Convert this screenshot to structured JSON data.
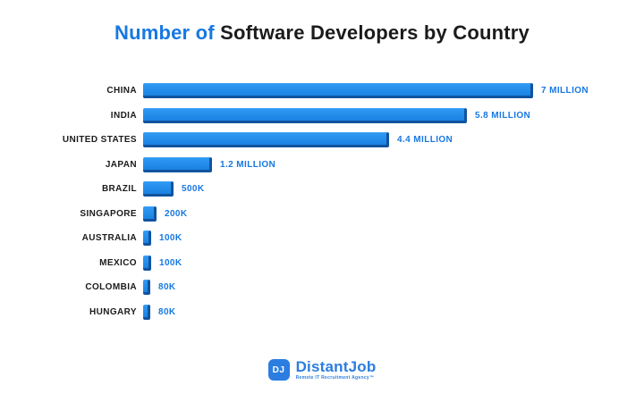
{
  "title": {
    "highlight": "Number of",
    "rest": " Software Developers by Country"
  },
  "chart_data": {
    "type": "bar",
    "orientation": "horizontal",
    "title": "Number of Software Developers by Country",
    "xlabel": "",
    "ylabel": "",
    "xlim": [
      0,
      7000000
    ],
    "grid": false,
    "legend": false,
    "categories": [
      "CHINA",
      "INDIA",
      "UNITED STATES",
      "JAPAN",
      "BRAZIL",
      "SINGAPORE",
      "AUSTRALIA",
      "MEXICO",
      "COLOMBIA",
      "HUNGARY"
    ],
    "values": [
      7000000,
      5800000,
      4400000,
      1200000,
      500000,
      200000,
      100000,
      100000,
      80000,
      80000
    ],
    "value_labels": [
      "7 MILLION",
      "5.8 MILLION",
      "4.4 MILLION",
      "1.2 MILLION",
      "500K",
      "200K",
      "100K",
      "100K",
      "80K",
      "80K"
    ]
  },
  "footer": {
    "logo_monogram": "DJ",
    "brand": "DistantJob",
    "tagline": "Remote IT Recruitment Agency™"
  },
  "colors": {
    "bar_fill": "#1E8CEC",
    "bar_border": "#11539F",
    "accent_blue": "#1778E2",
    "text_dark": "#1B1B1D",
    "background": "#FFFFFF"
  }
}
